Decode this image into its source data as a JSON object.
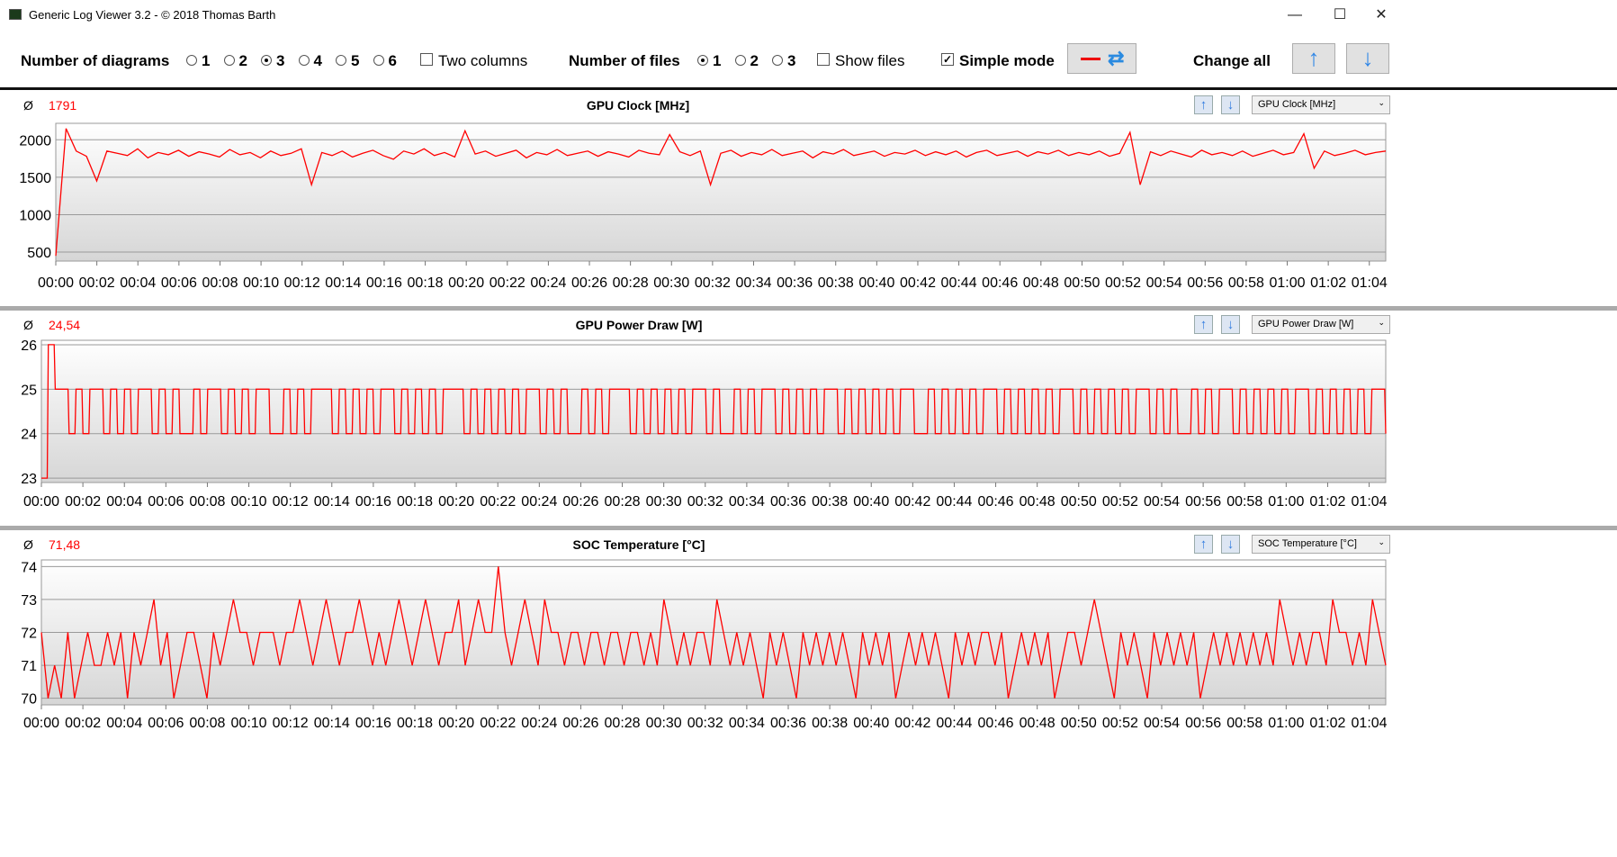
{
  "window": {
    "title": "Generic Log Viewer 3.2 - © 2018 Thomas Barth",
    "minimize": "—",
    "maximize": "☐",
    "close": "✕"
  },
  "toolbar": {
    "diagrams_label": "Number of diagrams",
    "diagram_options": [
      "1",
      "2",
      "3",
      "4",
      "5",
      "6"
    ],
    "diagrams_selected": "3",
    "two_columns": "Two columns",
    "two_columns_checked": false,
    "files_label": "Number of files",
    "file_options": [
      "1",
      "2",
      "3"
    ],
    "files_selected": "1",
    "show_files": "Show files",
    "show_files_checked": false,
    "simple_mode": "Simple mode",
    "simple_mode_checked": true,
    "change_all": "Change all"
  },
  "accent": "#ff0000",
  "x_ticks": [
    "00:00",
    "00:02",
    "00:04",
    "00:06",
    "00:08",
    "00:10",
    "00:12",
    "00:14",
    "00:16",
    "00:18",
    "00:20",
    "00:22",
    "00:24",
    "00:26",
    "00:28",
    "00:30",
    "00:32",
    "00:34",
    "00:36",
    "00:38",
    "00:40",
    "00:42",
    "00:44",
    "00:46",
    "00:48",
    "00:50",
    "00:52",
    "00:54",
    "00:56",
    "00:58",
    "01:00",
    "01:02",
    "01:04"
  ],
  "chart_data": [
    {
      "type": "line",
      "title": "GPU Clock [MHz]",
      "average": "1791",
      "dropdown": "GPU Clock [MHz]",
      "ylim": [
        380,
        2220
      ],
      "yticks": [
        500,
        1000,
        1500,
        2000
      ],
      "x_range_min": [
        0,
        64.8
      ],
      "values": [
        450,
        2150,
        1850,
        1780,
        1450,
        1850,
        1820,
        1790,
        1880,
        1760,
        1830,
        1800,
        1860,
        1780,
        1840,
        1810,
        1770,
        1870,
        1800,
        1830,
        1760,
        1850,
        1790,
        1820,
        1880,
        1400,
        1830,
        1790,
        1850,
        1770,
        1820,
        1860,
        1790,
        1740,
        1850,
        1810,
        1880,
        1790,
        1830,
        1770,
        2120,
        1810,
        1850,
        1780,
        1820,
        1860,
        1760,
        1830,
        1800,
        1870,
        1790,
        1820,
        1850,
        1780,
        1840,
        1810,
        1770,
        1860,
        1820,
        1800,
        2070,
        1840,
        1790,
        1850,
        1400,
        1820,
        1860,
        1780,
        1830,
        1800,
        1870,
        1790,
        1820,
        1850,
        1760,
        1840,
        1810,
        1870,
        1790,
        1820,
        1850,
        1780,
        1830,
        1810,
        1860,
        1790,
        1840,
        1800,
        1850,
        1770,
        1830,
        1860,
        1790,
        1820,
        1850,
        1780,
        1840,
        1810,
        1860,
        1790,
        1830,
        1800,
        1850,
        1780,
        1820,
        2100,
        1400,
        1840,
        1790,
        1850,
        1810,
        1770,
        1860,
        1800,
        1830,
        1790,
        1850,
        1780,
        1820,
        1860,
        1800,
        1830,
        2080,
        1620,
        1850,
        1790,
        1820,
        1860,
        1800,
        1830,
        1850
      ]
    },
    {
      "type": "line",
      "title": "GPU Power Draw [W]",
      "average": "24,54",
      "dropdown": "GPU Power Draw [W]",
      "ylim": [
        22.9,
        26.1
      ],
      "yticks": [
        23,
        24,
        25,
        26
      ],
      "x_range_min": [
        0,
        64.8
      ],
      "step": true,
      "values": [
        23,
        26,
        25,
        25,
        24,
        25,
        24,
        25,
        25,
        24,
        25,
        24,
        25,
        24,
        25,
        25,
        24,
        25,
        24,
        25,
        24,
        24,
        25,
        24,
        25,
        25,
        24,
        25,
        24,
        25,
        24,
        25,
        25,
        24,
        24,
        25,
        24,
        25,
        24,
        25,
        25,
        25,
        24,
        25,
        24,
        25,
        24,
        25,
        24,
        25,
        25,
        24,
        25,
        24,
        25,
        24,
        25,
        24,
        25,
        25,
        25,
        24,
        25,
        24,
        25,
        24,
        25,
        24,
        25,
        24,
        25,
        25,
        24,
        25,
        24,
        25,
        24,
        24,
        25,
        24,
        25,
        24,
        25,
        25,
        25,
        24,
        25,
        24,
        25,
        24,
        25,
        24,
        25,
        24,
        25,
        25,
        24,
        25,
        24,
        24,
        25,
        24,
        25,
        24,
        25,
        25,
        24,
        25,
        24,
        25,
        24,
        25,
        24,
        25,
        25,
        24,
        25,
        24,
        25,
        24,
        25,
        24,
        25,
        24,
        25,
        25,
        24,
        24,
        25,
        24,
        25,
        24,
        25,
        24,
        25,
        24,
        25,
        25,
        24,
        25,
        24,
        25,
        24,
        25,
        24,
        25,
        24,
        25,
        25,
        24,
        25,
        24,
        25,
        24,
        25,
        24,
        25,
        24,
        25,
        25,
        24,
        25,
        24,
        25,
        24,
        24,
        25,
        24,
        25,
        24,
        25,
        25,
        24,
        25,
        24,
        25,
        24,
        25,
        24,
        25,
        24,
        25,
        25,
        24,
        25,
        24,
        25,
        24,
        25,
        24,
        25,
        24,
        25,
        25,
        24
      ]
    },
    {
      "type": "line",
      "title": "SOC Temperature [°C]",
      "average": "71,48",
      "dropdown": "SOC Temperature [°C]",
      "ylim": [
        69.8,
        74.2
      ],
      "yticks": [
        70,
        71,
        72,
        73,
        74
      ],
      "x_range_min": [
        0,
        64.8
      ],
      "values": [
        72,
        70,
        71,
        70,
        72,
        70,
        71,
        72,
        71,
        71,
        72,
        71,
        72,
        70,
        72,
        71,
        72,
        73,
        71,
        72,
        70,
        71,
        72,
        72,
        71,
        70,
        72,
        71,
        72,
        73,
        72,
        72,
        71,
        72,
        72,
        72,
        71,
        72,
        72,
        73,
        72,
        71,
        72,
        73,
        72,
        71,
        72,
        72,
        73,
        72,
        71,
        72,
        71,
        72,
        73,
        72,
        71,
        72,
        73,
        72,
        71,
        72,
        72,
        73,
        71,
        72,
        73,
        72,
        72,
        74,
        72,
        71,
        72,
        73,
        72,
        71,
        73,
        72,
        72,
        71,
        72,
        72,
        71,
        72,
        72,
        71,
        72,
        72,
        71,
        72,
        72,
        71,
        72,
        71,
        73,
        72,
        71,
        72,
        71,
        72,
        72,
        71,
        73,
        72,
        71,
        72,
        71,
        72,
        71,
        70,
        72,
        71,
        72,
        71,
        70,
        72,
        71,
        72,
        71,
        72,
        71,
        72,
        71,
        70,
        72,
        71,
        72,
        71,
        72,
        70,
        71,
        72,
        71,
        72,
        71,
        72,
        71,
        70,
        72,
        71,
        72,
        71,
        72,
        72,
        71,
        72,
        70,
        71,
        72,
        71,
        72,
        71,
        72,
        70,
        71,
        72,
        72,
        71,
        72,
        73,
        72,
        71,
        70,
        72,
        71,
        72,
        71,
        70,
        72,
        71,
        72,
        71,
        72,
        71,
        72,
        70,
        71,
        72,
        71,
        72,
        71,
        72,
        71,
        72,
        71,
        72,
        71,
        73,
        72,
        71,
        72,
        71,
        72,
        72,
        71,
        73,
        72,
        72,
        71,
        72,
        71,
        73,
        72,
        71
      ]
    }
  ]
}
